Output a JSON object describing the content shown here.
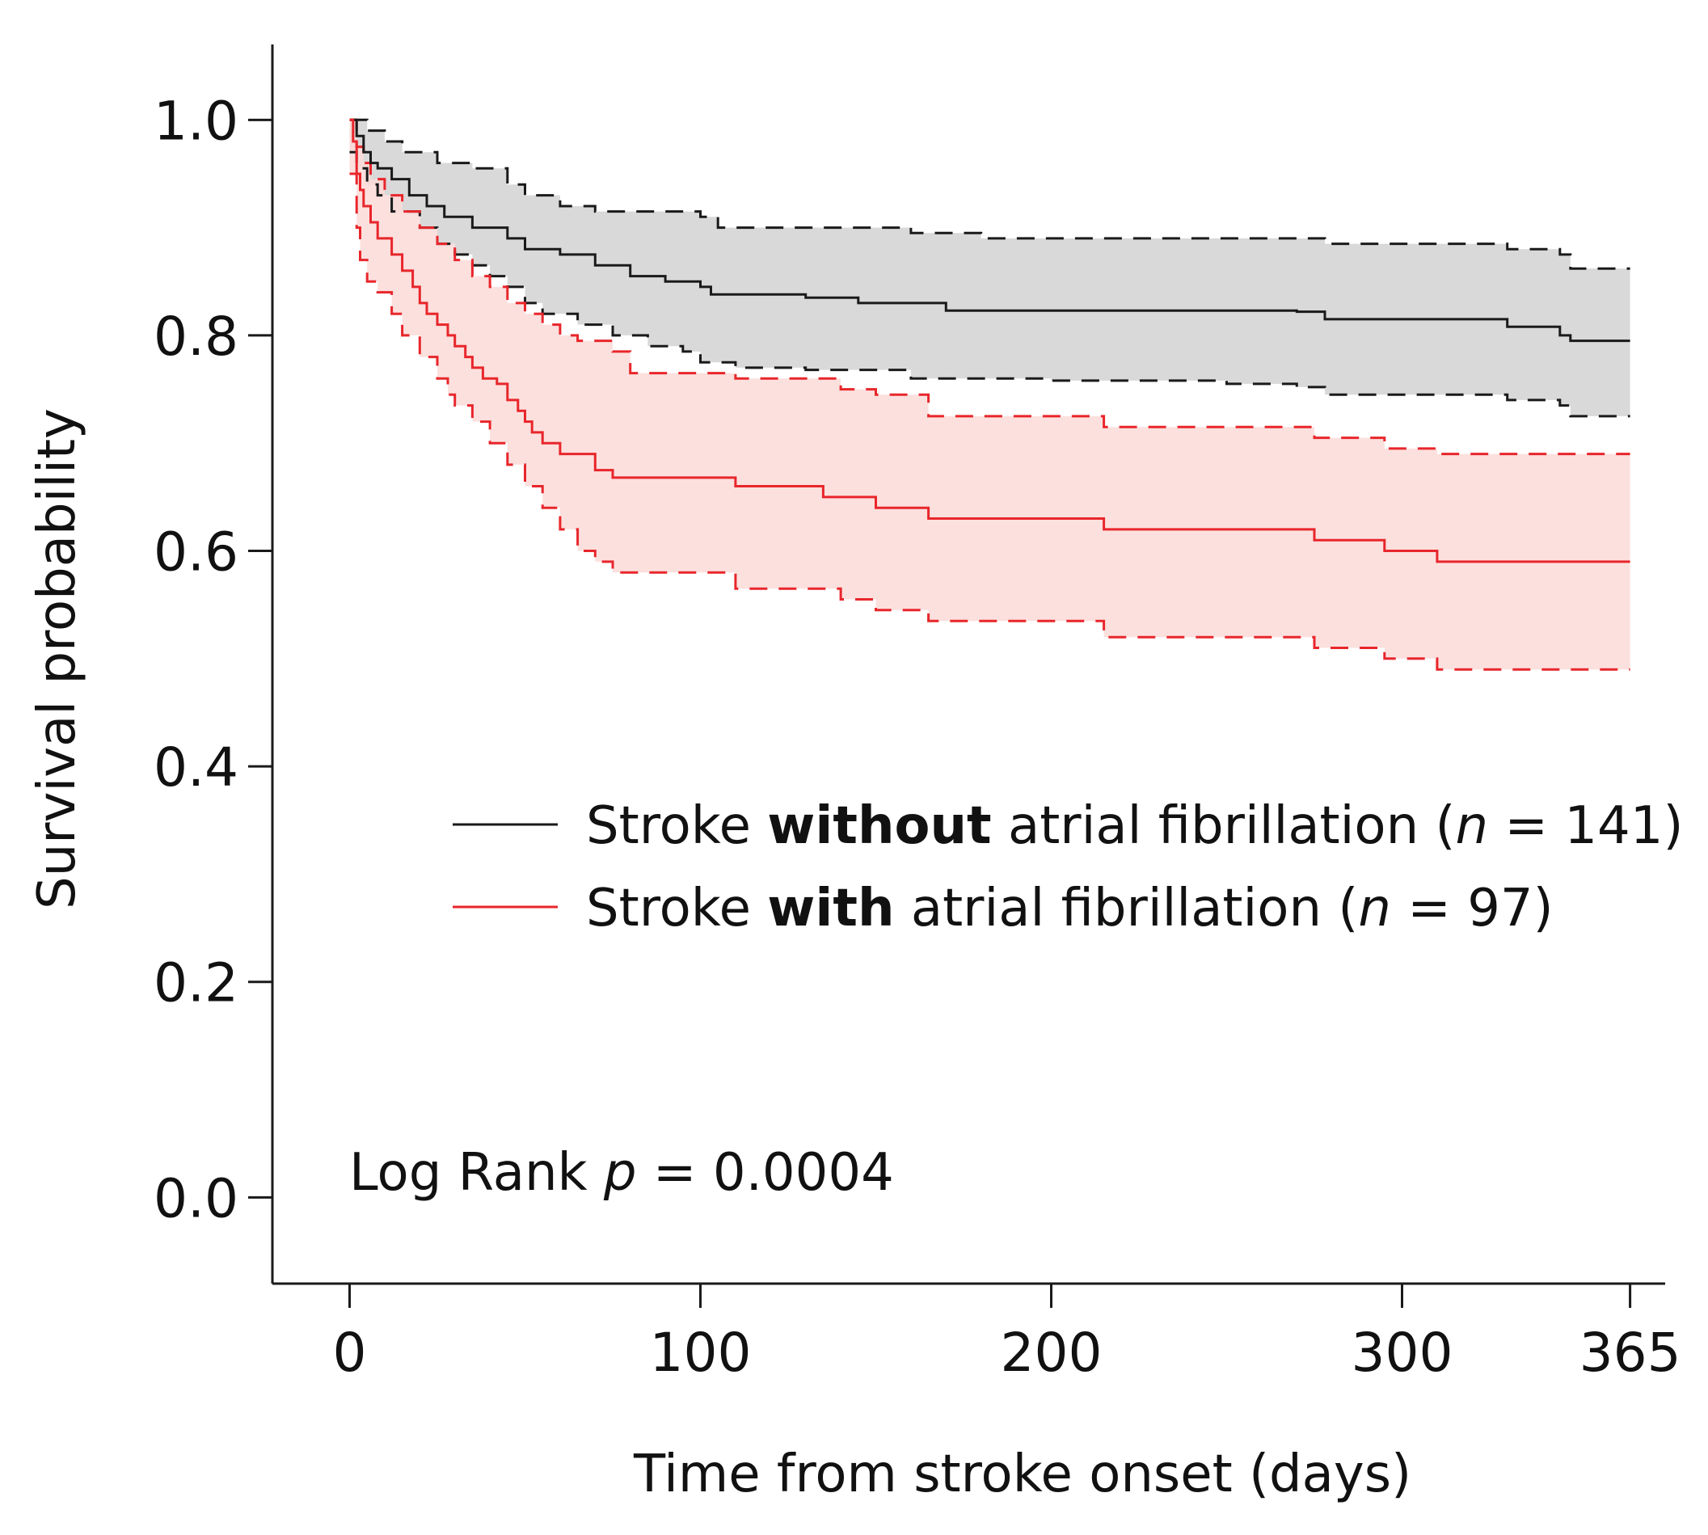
{
  "chart_data": {
    "type": "line",
    "subtype": "kaplan-meier survival curve with 95% confidence bands",
    "xlabel": "Time from stroke onset (days)",
    "ylabel": "Survival probability",
    "xlim": [
      -22,
      375
    ],
    "ylim": [
      -0.08,
      1.07
    ],
    "x_ticks": [
      0,
      100,
      200,
      300,
      365
    ],
    "x_tick_labels": [
      "0",
      "100",
      "200",
      "300",
      "365"
    ],
    "y_ticks": [
      0.0,
      0.2,
      0.4,
      0.6,
      0.8,
      1.0
    ],
    "y_tick_labels": [
      "0.0",
      "0.2",
      "0.4",
      "0.6",
      "0.8",
      "1.0"
    ],
    "grid": false,
    "legend_position": "center-right",
    "annotation": {
      "prefix": "Log Rank ",
      "p_symbol": "p",
      "rest": " = 0.0004"
    },
    "series": [
      {
        "name": "Stroke without atrial fibrillation (n = 141)",
        "legend_prefix": "Stroke ",
        "legend_bold": "without",
        "legend_mid": " atrial fibrillation (",
        "legend_n_symbol": "n",
        "legend_suffix": " = 141)",
        "color": "#1a1a1a",
        "band_color": "#d9d9d9",
        "steps": [
          [
            0,
            1.0
          ],
          [
            2,
            0.985
          ],
          [
            4,
            0.97
          ],
          [
            6,
            0.96
          ],
          [
            8,
            0.955
          ],
          [
            12,
            0.945
          ],
          [
            17,
            0.93
          ],
          [
            22,
            0.92
          ],
          [
            27,
            0.91
          ],
          [
            35,
            0.9
          ],
          [
            45,
            0.89
          ],
          [
            50,
            0.88
          ],
          [
            60,
            0.875
          ],
          [
            70,
            0.865
          ],
          [
            80,
            0.855
          ],
          [
            90,
            0.85
          ],
          [
            100,
            0.845
          ],
          [
            103,
            0.838
          ],
          [
            130,
            0.835
          ],
          [
            145,
            0.83
          ],
          [
            170,
            0.823
          ],
          [
            230,
            0.823
          ],
          [
            270,
            0.822
          ],
          [
            278,
            0.815
          ],
          [
            330,
            0.808
          ],
          [
            345,
            0.8
          ],
          [
            348,
            0.795
          ],
          [
            365,
            0.795
          ]
        ],
        "upper": [
          [
            0,
            1.0
          ],
          [
            5,
            0.99
          ],
          [
            10,
            0.98
          ],
          [
            15,
            0.97
          ],
          [
            25,
            0.96
          ],
          [
            35,
            0.955
          ],
          [
            45,
            0.94
          ],
          [
            50,
            0.93
          ],
          [
            60,
            0.92
          ],
          [
            70,
            0.915
          ],
          [
            100,
            0.91
          ],
          [
            105,
            0.9
          ],
          [
            160,
            0.895
          ],
          [
            180,
            0.89
          ],
          [
            230,
            0.89
          ],
          [
            278,
            0.885
          ],
          [
            330,
            0.88
          ],
          [
            345,
            0.875
          ],
          [
            348,
            0.862
          ],
          [
            365,
            0.862
          ]
        ],
        "lower": [
          [
            0,
            0.97
          ],
          [
            2,
            0.955
          ],
          [
            5,
            0.94
          ],
          [
            8,
            0.93
          ],
          [
            12,
            0.915
          ],
          [
            20,
            0.9
          ],
          [
            25,
            0.885
          ],
          [
            30,
            0.875
          ],
          [
            35,
            0.865
          ],
          [
            40,
            0.855
          ],
          [
            45,
            0.845
          ],
          [
            50,
            0.83
          ],
          [
            55,
            0.82
          ],
          [
            65,
            0.81
          ],
          [
            75,
            0.8
          ],
          [
            85,
            0.79
          ],
          [
            95,
            0.785
          ],
          [
            100,
            0.775
          ],
          [
            110,
            0.77
          ],
          [
            130,
            0.768
          ],
          [
            160,
            0.76
          ],
          [
            200,
            0.758
          ],
          [
            250,
            0.755
          ],
          [
            270,
            0.752
          ],
          [
            278,
            0.745
          ],
          [
            330,
            0.74
          ],
          [
            345,
            0.735
          ],
          [
            348,
            0.725
          ],
          [
            365,
            0.725
          ]
        ]
      },
      {
        "name": "Stroke with atrial fibrillation (n = 97)",
        "legend_prefix": "Stroke ",
        "legend_bold": "with",
        "legend_mid": " atrial fibrillation (",
        "legend_n_symbol": "n",
        "legend_suffix": " = 97)",
        "color": "#e8262b",
        "band_color": "#fbdad8",
        "steps": [
          [
            0,
            1.0
          ],
          [
            1,
            0.98
          ],
          [
            2,
            0.95
          ],
          [
            3,
            0.935
          ],
          [
            4,
            0.92
          ],
          [
            6,
            0.905
          ],
          [
            8,
            0.89
          ],
          [
            12,
            0.875
          ],
          [
            15,
            0.86
          ],
          [
            18,
            0.845
          ],
          [
            20,
            0.83
          ],
          [
            22,
            0.82
          ],
          [
            25,
            0.81
          ],
          [
            28,
            0.8
          ],
          [
            30,
            0.79
          ],
          [
            33,
            0.78
          ],
          [
            35,
            0.77
          ],
          [
            38,
            0.76
          ],
          [
            42,
            0.755
          ],
          [
            45,
            0.74
          ],
          [
            48,
            0.73
          ],
          [
            50,
            0.72
          ],
          [
            52,
            0.71
          ],
          [
            55,
            0.7
          ],
          [
            60,
            0.69
          ],
          [
            65,
            0.69
          ],
          [
            70,
            0.675
          ],
          [
            75,
            0.668
          ],
          [
            110,
            0.66
          ],
          [
            135,
            0.65
          ],
          [
            150,
            0.64
          ],
          [
            165,
            0.63
          ],
          [
            215,
            0.62
          ],
          [
            275,
            0.61
          ],
          [
            295,
            0.6
          ],
          [
            310,
            0.59
          ],
          [
            365,
            0.59
          ]
        ],
        "upper": [
          [
            0,
            1.0
          ],
          [
            2,
            0.975
          ],
          [
            4,
            0.96
          ],
          [
            6,
            0.945
          ],
          [
            10,
            0.93
          ],
          [
            15,
            0.915
          ],
          [
            20,
            0.9
          ],
          [
            25,
            0.885
          ],
          [
            30,
            0.87
          ],
          [
            35,
            0.855
          ],
          [
            40,
            0.845
          ],
          [
            45,
            0.83
          ],
          [
            50,
            0.82
          ],
          [
            55,
            0.81
          ],
          [
            60,
            0.8
          ],
          [
            65,
            0.795
          ],
          [
            75,
            0.785
          ],
          [
            80,
            0.765
          ],
          [
            110,
            0.76
          ],
          [
            140,
            0.75
          ],
          [
            150,
            0.745
          ],
          [
            165,
            0.725
          ],
          [
            215,
            0.715
          ],
          [
            275,
            0.705
          ],
          [
            295,
            0.695
          ],
          [
            310,
            0.69
          ],
          [
            365,
            0.69
          ]
        ],
        "lower": [
          [
            0,
            0.95
          ],
          [
            2,
            0.9
          ],
          [
            3,
            0.87
          ],
          [
            5,
            0.85
          ],
          [
            8,
            0.84
          ],
          [
            12,
            0.82
          ],
          [
            15,
            0.8
          ],
          [
            20,
            0.78
          ],
          [
            25,
            0.76
          ],
          [
            28,
            0.745
          ],
          [
            30,
            0.735
          ],
          [
            35,
            0.72
          ],
          [
            40,
            0.7
          ],
          [
            45,
            0.68
          ],
          [
            50,
            0.66
          ],
          [
            55,
            0.64
          ],
          [
            60,
            0.62
          ],
          [
            65,
            0.6
          ],
          [
            70,
            0.59
          ],
          [
            75,
            0.58
          ],
          [
            110,
            0.565
          ],
          [
            140,
            0.555
          ],
          [
            150,
            0.545
          ],
          [
            165,
            0.535
          ],
          [
            215,
            0.52
          ],
          [
            275,
            0.51
          ],
          [
            295,
            0.5
          ],
          [
            310,
            0.49
          ],
          [
            365,
            0.49
          ]
        ]
      }
    ]
  }
}
